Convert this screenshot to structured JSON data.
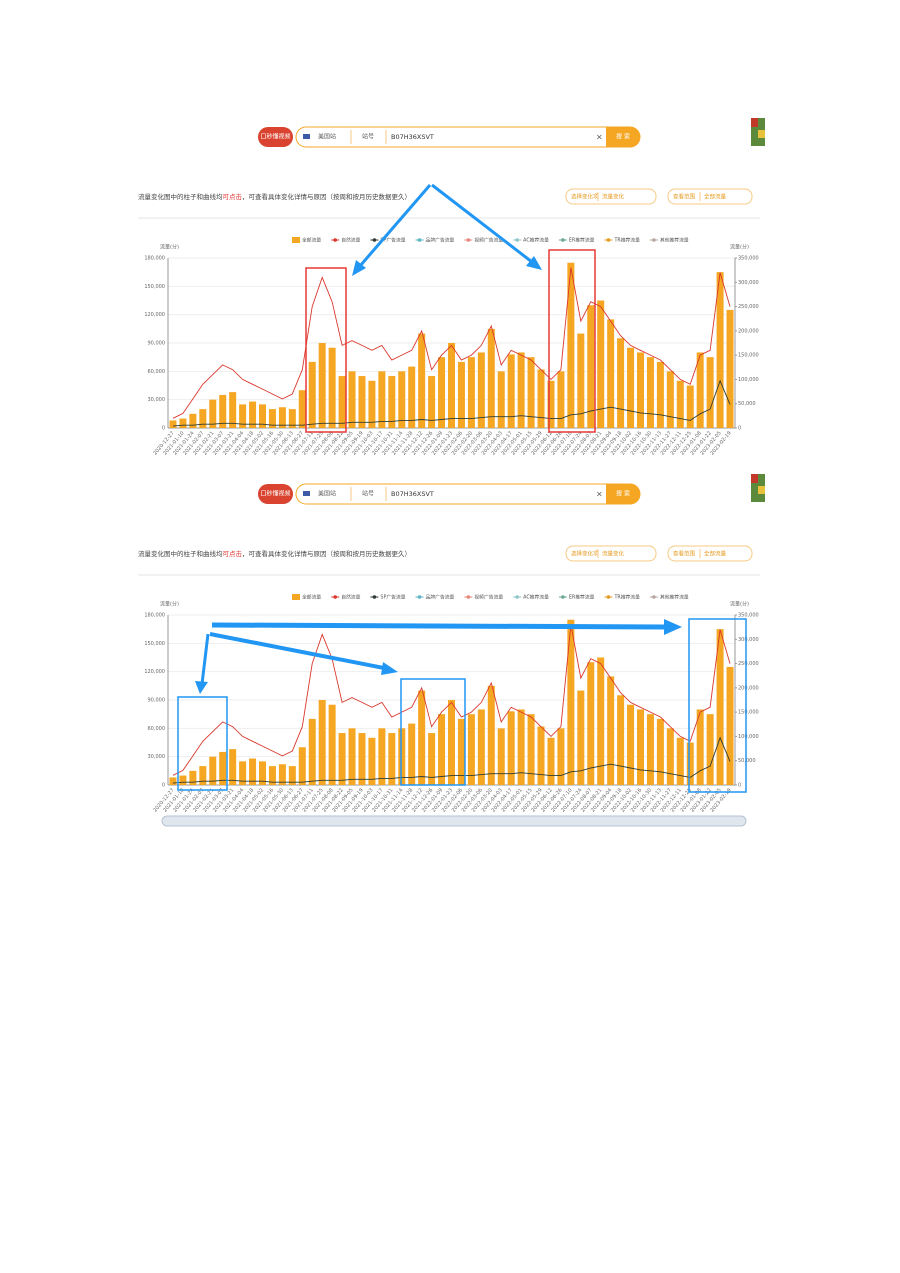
{
  "search": {
    "video_button": "口秒懂视频",
    "site": "美国站",
    "field": "站号",
    "query": "B07H36XSVT",
    "clear": "×",
    "submit": "搜 索"
  },
  "description": {
    "before": "流量变化图中的柱子和曲线均",
    "highlight": "可点击",
    "after": "，可查看具体变化详情与原因（按周和按月历史数据更久）"
  },
  "selects": [
    {
      "label": "选择变化项",
      "value": "流量变化"
    },
    {
      "label": "查看范围",
      "value": "全部流量"
    }
  ],
  "chart_data": {
    "type": "bar",
    "ylabel": "流量(分)",
    "y2label": "流量(分)",
    "ylim": [
      0,
      180000
    ],
    "yticks": [
      0,
      {
        "value": 30000,
        "label": "30,000"
      },
      {
        "value": 60000,
        "label": "60,000"
      },
      {
        "value": 90000,
        "label": "90,000"
      },
      {
        "value": 120000,
        "label": "120,000"
      },
      {
        "value": 150000,
        "label": "150,000"
      },
      {
        "value": 180000,
        "label": "180,000"
      }
    ],
    "y2lim": [
      0,
      350000
    ],
    "y2ticks": [
      0,
      {
        "value": 50000,
        "label": "50,000"
      },
      {
        "value": 100000,
        "label": "100,000"
      },
      {
        "value": 150000,
        "label": "150,000"
      },
      {
        "value": 200000,
        "label": "200,000"
      },
      {
        "value": 250000,
        "label": "250,000"
      },
      {
        "value": 300000,
        "label": "300,000"
      },
      {
        "value": 350000,
        "label": "350,000"
      }
    ],
    "grid": true,
    "categories": [
      "2020-12-27",
      "2021-01-10",
      "2021-01-24",
      "2021-02-07",
      "2021-02-21",
      "2021-03-07",
      "2021-03-21",
      "2021-04-04",
      "2021-04-18",
      "2021-05-02",
      "2021-05-16",
      "2021-05-30",
      "2021-06-13",
      "2021-06-27",
      "2021-07-11",
      "2021-07-25",
      "2021-08-08",
      "2021-08-22",
      "2021-09-05",
      "2021-09-19",
      "2021-10-03",
      "2021-10-17",
      "2021-10-31",
      "2021-11-14",
      "2021-11-28",
      "2021-12-12",
      "2021-12-26",
      "2022-01-09",
      "2022-01-23",
      "2022-02-06",
      "2022-02-20",
      "2022-03-06",
      "2022-03-20",
      "2022-04-03",
      "2022-04-17",
      "2022-05-01",
      "2022-05-15",
      "2022-05-29",
      "2022-06-12",
      "2022-06-26",
      "2022-07-10",
      "2022-07-24",
      "2022-08-07",
      "2022-08-21",
      "2022-09-04",
      "2022-09-18",
      "2022-10-02",
      "2022-10-16",
      "2022-10-30",
      "2022-11-13",
      "2022-11-27",
      "2022-12-11",
      "2022-12-25",
      "2023-01-08",
      "2023-01-22",
      "2023-02-05",
      "2023-02-19"
    ],
    "series": [
      {
        "name": "全部流量",
        "type": "bar",
        "color": "#f5a623",
        "values": [
          8000,
          10000,
          15000,
          20000,
          30000,
          35000,
          38000,
          25000,
          28000,
          25000,
          20000,
          22000,
          20000,
          40000,
          70000,
          90000,
          85000,
          55000,
          60000,
          55000,
          50000,
          60000,
          55000,
          60000,
          65000,
          100000,
          55000,
          75000,
          90000,
          70000,
          75000,
          80000,
          105000,
          60000,
          78000,
          80000,
          75000,
          62000,
          50000,
          60000,
          175000,
          100000,
          130000,
          135000,
          115000,
          95000,
          85000,
          80000,
          75000,
          70000,
          60000,
          50000,
          45000,
          80000,
          75000,
          165000,
          125000
        ]
      },
      {
        "name": "自然流量",
        "type": "line",
        "axis": "y2",
        "color": "#d9372c",
        "values": [
          20000,
          30000,
          60000,
          90000,
          110000,
          130000,
          120000,
          100000,
          90000,
          80000,
          70000,
          60000,
          70000,
          120000,
          250000,
          310000,
          260000,
          170000,
          180000,
          170000,
          160000,
          170000,
          140000,
          150000,
          160000,
          200000,
          120000,
          150000,
          170000,
          140000,
          150000,
          170000,
          210000,
          130000,
          160000,
          150000,
          140000,
          120000,
          100000,
          120000,
          330000,
          220000,
          260000,
          250000,
          220000,
          190000,
          170000,
          160000,
          150000,
          140000,
          120000,
          100000,
          90000,
          150000,
          160000,
          320000,
          250000
        ]
      },
      {
        "name": "SP广告流量",
        "type": "line",
        "color": "#2f3b33",
        "values": [
          2000,
          3000,
          3000,
          4000,
          4000,
          5000,
          5000,
          4000,
          4000,
          4000,
          3000,
          3000,
          3000,
          3000,
          4000,
          5000,
          5000,
          5000,
          6000,
          6000,
          6000,
          7000,
          7000,
          8000,
          8000,
          9000,
          8000,
          9000,
          10000,
          10000,
          10000,
          11000,
          12000,
          12000,
          12000,
          13000,
          12000,
          11000,
          10000,
          10000,
          14000,
          15000,
          18000,
          20000,
          22000,
          20000,
          18000,
          16000,
          15000,
          14000,
          12000,
          10000,
          8000,
          15000,
          20000,
          50000,
          25000
        ]
      }
    ],
    "other_series": [
      {
        "name": "品牌广告流量",
        "color": "#5bb5c5"
      },
      {
        "name": "视频广告流量",
        "color": "#e8867a"
      },
      {
        "name": "AC推荐流量",
        "color": "#8cc7c9"
      },
      {
        "name": "ER推荐流量",
        "color": "#6aa88f"
      },
      {
        "name": "TR推荐流量",
        "color": "#e59a1f"
      },
      {
        "name": "其他推荐流量",
        "color": "#b7a6a0"
      }
    ]
  }
}
